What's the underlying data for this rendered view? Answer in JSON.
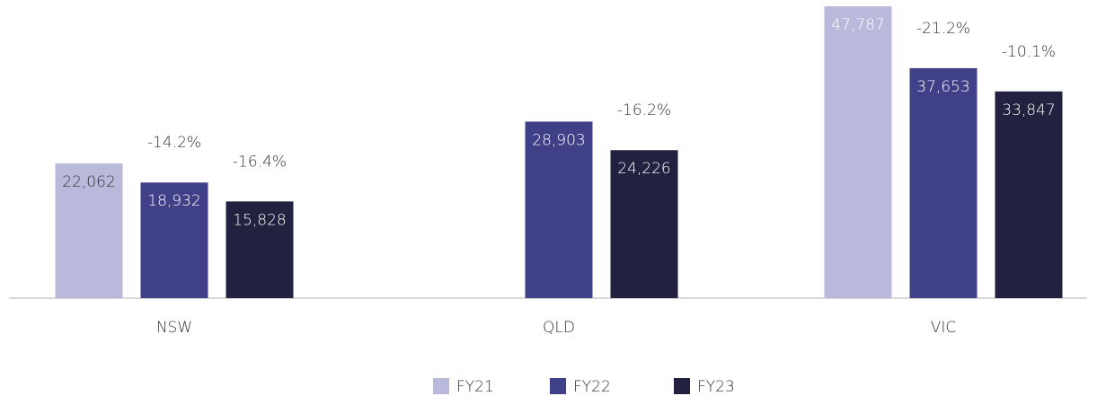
{
  "chart_data": {
    "type": "bar",
    "categories": [
      "NSW",
      "QLD",
      "VIC"
    ],
    "series": [
      {
        "name": "FY21",
        "color": "#b9b9dc",
        "values": [
          22062,
          null,
          47787
        ],
        "value_labels": [
          "22,062",
          null,
          "47,787"
        ]
      },
      {
        "name": "FY22",
        "color": "#404088",
        "values": [
          18932,
          28903,
          37653
        ],
        "value_labels": [
          "18,932",
          "28,903",
          "37,653"
        ],
        "changes": [
          "-14.2%",
          null,
          "-21.2%"
        ]
      },
      {
        "name": "FY23",
        "color": "#222240",
        "values": [
          15828,
          24226,
          33847
        ],
        "value_labels": [
          "15,828",
          "24,226",
          "33,847"
        ],
        "changes": [
          "-16.4%",
          "-16.2%",
          "-10.1%"
        ]
      }
    ],
    "legend": "bottom"
  }
}
